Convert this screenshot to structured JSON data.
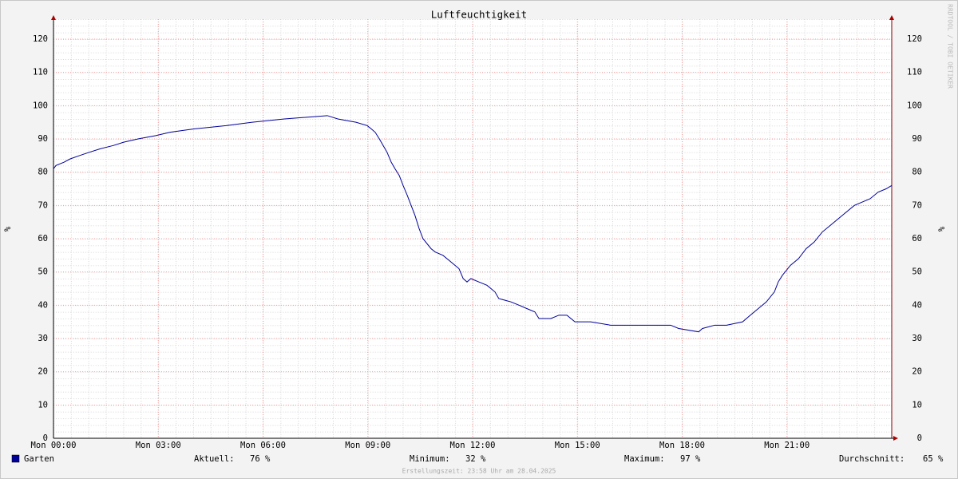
{
  "chart_data": {
    "type": "line",
    "title": "Luftfeuchtigkeit",
    "y_label": "%",
    "y2_label": "%",
    "watermark": "RRDTOOL / TOBI OETIKER",
    "xlim": [
      0,
      24
    ],
    "xticks": [
      {
        "value": 0,
        "label": "Mon 00:00"
      },
      {
        "value": 3,
        "label": "Mon 03:00"
      },
      {
        "value": 6,
        "label": "Mon 06:00"
      },
      {
        "value": 9,
        "label": "Mon 09:00"
      },
      {
        "value": 12,
        "label": "Mon 12:00"
      },
      {
        "value": 15,
        "label": "Mon 15:00"
      },
      {
        "value": 18,
        "label": "Mon 18:00"
      },
      {
        "value": 21,
        "label": "Mon 21:00"
      }
    ],
    "ylim": [
      0,
      126
    ],
    "yticks": [
      0,
      10,
      20,
      30,
      40,
      50,
      60,
      70,
      80,
      90,
      100,
      110,
      120
    ],
    "y2lim": [
      0,
      126
    ],
    "y2ticks": [
      0,
      10,
      20,
      30,
      40,
      50,
      60,
      70,
      80,
      90,
      100,
      110,
      120
    ],
    "grid": true,
    "series": [
      {
        "name": "Garten",
        "color": "#000099",
        "x": [
          0,
          0.07,
          0.3,
          0.48,
          0.75,
          1.03,
          1.33,
          1.71,
          2.01,
          2.42,
          2.93,
          3.34,
          4.02,
          4.94,
          5.69,
          6.61,
          7.84,
          8.14,
          8.66,
          8.98,
          9.1,
          9.21,
          9.33,
          9.44,
          9.55,
          9.67,
          9.78,
          9.9,
          10.01,
          10.13,
          10.24,
          10.35,
          10.47,
          10.58,
          10.81,
          10.93,
          11.15,
          11.38,
          11.61,
          11.73,
          11.84,
          11.95,
          12.18,
          12.41,
          12.64,
          12.75,
          13.1,
          13.33,
          13.55,
          13.78,
          13.9,
          14.24,
          14.47,
          14.7,
          14.93,
          15.38,
          15.95,
          16.75,
          17.67,
          17.9,
          18.47,
          18.58,
          18.93,
          19.27,
          19.73,
          19.95,
          20.18,
          20.41,
          20.64,
          20.75,
          20.87,
          21.1,
          21.33,
          21.55,
          21.78,
          22.01,
          22.24,
          22.47,
          22.7,
          22.93,
          23.15,
          23.38,
          23.61,
          23.84,
          24
        ],
        "values": [
          81,
          82,
          83,
          84,
          85,
          86,
          87,
          88,
          89,
          90,
          91,
          92,
          93,
          94,
          95,
          96,
          97,
          96,
          95,
          94,
          93,
          92,
          90,
          88,
          86,
          83,
          81,
          79,
          76,
          73,
          70,
          67,
          63,
          60,
          57,
          56,
          55,
          53,
          51,
          48,
          47,
          48,
          47,
          46,
          44,
          42,
          41,
          40,
          39,
          38,
          36,
          36,
          37,
          37,
          35,
          35,
          34,
          34,
          34,
          33,
          32,
          33,
          34,
          34,
          35,
          37,
          39,
          41,
          44,
          47,
          49,
          52,
          54,
          57,
          59,
          62,
          64,
          66,
          68,
          70,
          71,
          72,
          74,
          75,
          76
        ]
      }
    ],
    "stats": [
      {
        "label": "Aktuell:",
        "value": "76 %"
      },
      {
        "label": "Minimum:",
        "value": "32 %"
      },
      {
        "label": "Maximum:",
        "value": "97 %"
      },
      {
        "label": "Durchschnitt:",
        "value": "65 %"
      }
    ],
    "footer": "Erstellungszeit: 23:58 Uhr am 28.04.2025"
  }
}
